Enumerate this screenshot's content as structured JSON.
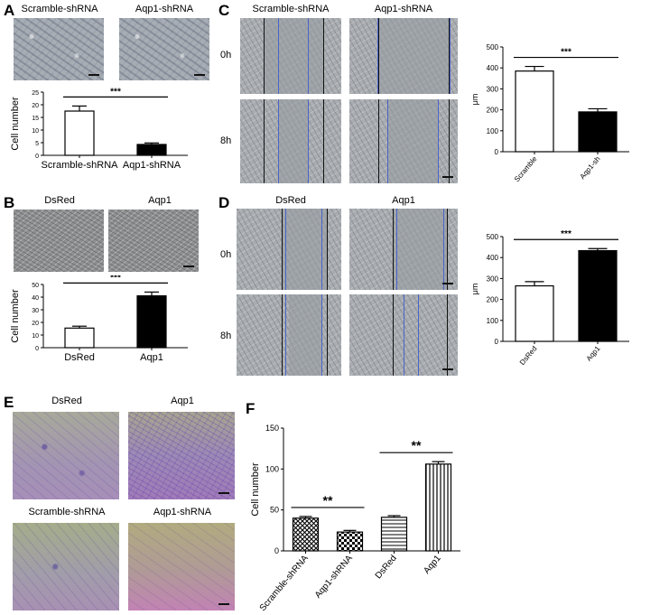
{
  "panels": {
    "A": {
      "label": "A",
      "images": [
        "Scramble-shRNA",
        "Aqp1-shRNA"
      ],
      "chart": {
        "ylabel": "Cell number",
        "yticks": [
          "0",
          "5",
          "10",
          "15",
          "20",
          "25"
        ],
        "signif": "***"
      }
    },
    "B": {
      "label": "B",
      "images": [
        "DsRed",
        "Aqp1"
      ],
      "chart": {
        "ylabel": "Cell number",
        "yticks": [
          "0",
          "10",
          "20",
          "30",
          "40",
          "50"
        ],
        "signif": "***"
      }
    },
    "C": {
      "label": "C",
      "images": [
        "Scramble-shRNA",
        "Aqp1-shRNA"
      ],
      "rows": [
        "0h",
        "8h"
      ],
      "chart": {
        "ylabel": "μm",
        "yticks": [
          "0",
          "100",
          "200",
          "300",
          "400",
          "500"
        ],
        "signif": "***"
      }
    },
    "D": {
      "label": "D",
      "images": [
        "DsRed",
        "Aqp1"
      ],
      "rows": [
        "0h",
        "8h"
      ],
      "chart": {
        "ylabel": "μm",
        "yticks": [
          "0",
          "100",
          "200",
          "300",
          "400",
          "500"
        ],
        "signif": "***"
      }
    },
    "E": {
      "label": "E",
      "images": [
        "DsRed",
        "Aqp1",
        "Scramble-shRNA",
        "Aqp1-shRNA"
      ]
    },
    "F": {
      "label": "F",
      "chart": {
        "ylabel": "Cell number",
        "yticks": [
          "0",
          "50",
          "100",
          "150"
        ],
        "signif": [
          "**",
          "**"
        ]
      }
    }
  },
  "chart_data": [
    {
      "id": "A",
      "type": "bar",
      "categories": [
        "Scramble-shRNA",
        "Aqp1-shRNA"
      ],
      "values": [
        17.5,
        4.3
      ],
      "errors": [
        2.0,
        0.6
      ],
      "ylabel": "Cell number",
      "ylim": [
        0,
        25
      ],
      "fills": [
        "#ffffff",
        "#000000"
      ]
    },
    {
      "id": "B",
      "type": "bar",
      "categories": [
        "DsRed",
        "Aqp1"
      ],
      "values": [
        15.5,
        41
      ],
      "errors": [
        1.5,
        3
      ],
      "ylabel": "Cell number",
      "ylim": [
        0,
        50
      ],
      "fills": [
        "#ffffff",
        "#000000"
      ]
    },
    {
      "id": "C",
      "type": "bar",
      "categories": [
        "Scramble",
        "Aqp1-sh"
      ],
      "values": [
        385,
        190
      ],
      "errors": [
        22,
        15
      ],
      "ylabel": "μm",
      "ylim": [
        0,
        500
      ],
      "fills": [
        "#ffffff",
        "#000000"
      ]
    },
    {
      "id": "D",
      "type": "bar",
      "categories": [
        "DsRed",
        "Aqp1"
      ],
      "values": [
        265,
        433
      ],
      "errors": [
        20,
        10
      ],
      "ylabel": "μm",
      "ylim": [
        0,
        500
      ],
      "fills": [
        "#ffffff",
        "#000000"
      ]
    },
    {
      "id": "F",
      "type": "bar",
      "categories": [
        "Scramble-shRNA",
        "Aqp1-shRNA",
        "DsRed",
        "Aqp1"
      ],
      "values": [
        40,
        23,
        41,
        106
      ],
      "errors": [
        2,
        2,
        2,
        3
      ],
      "ylabel": "Cell number",
      "ylim": [
        0,
        150
      ],
      "fills": [
        "pattern-cross",
        "pattern-check",
        "pattern-hline",
        "pattern-vline"
      ]
    }
  ]
}
